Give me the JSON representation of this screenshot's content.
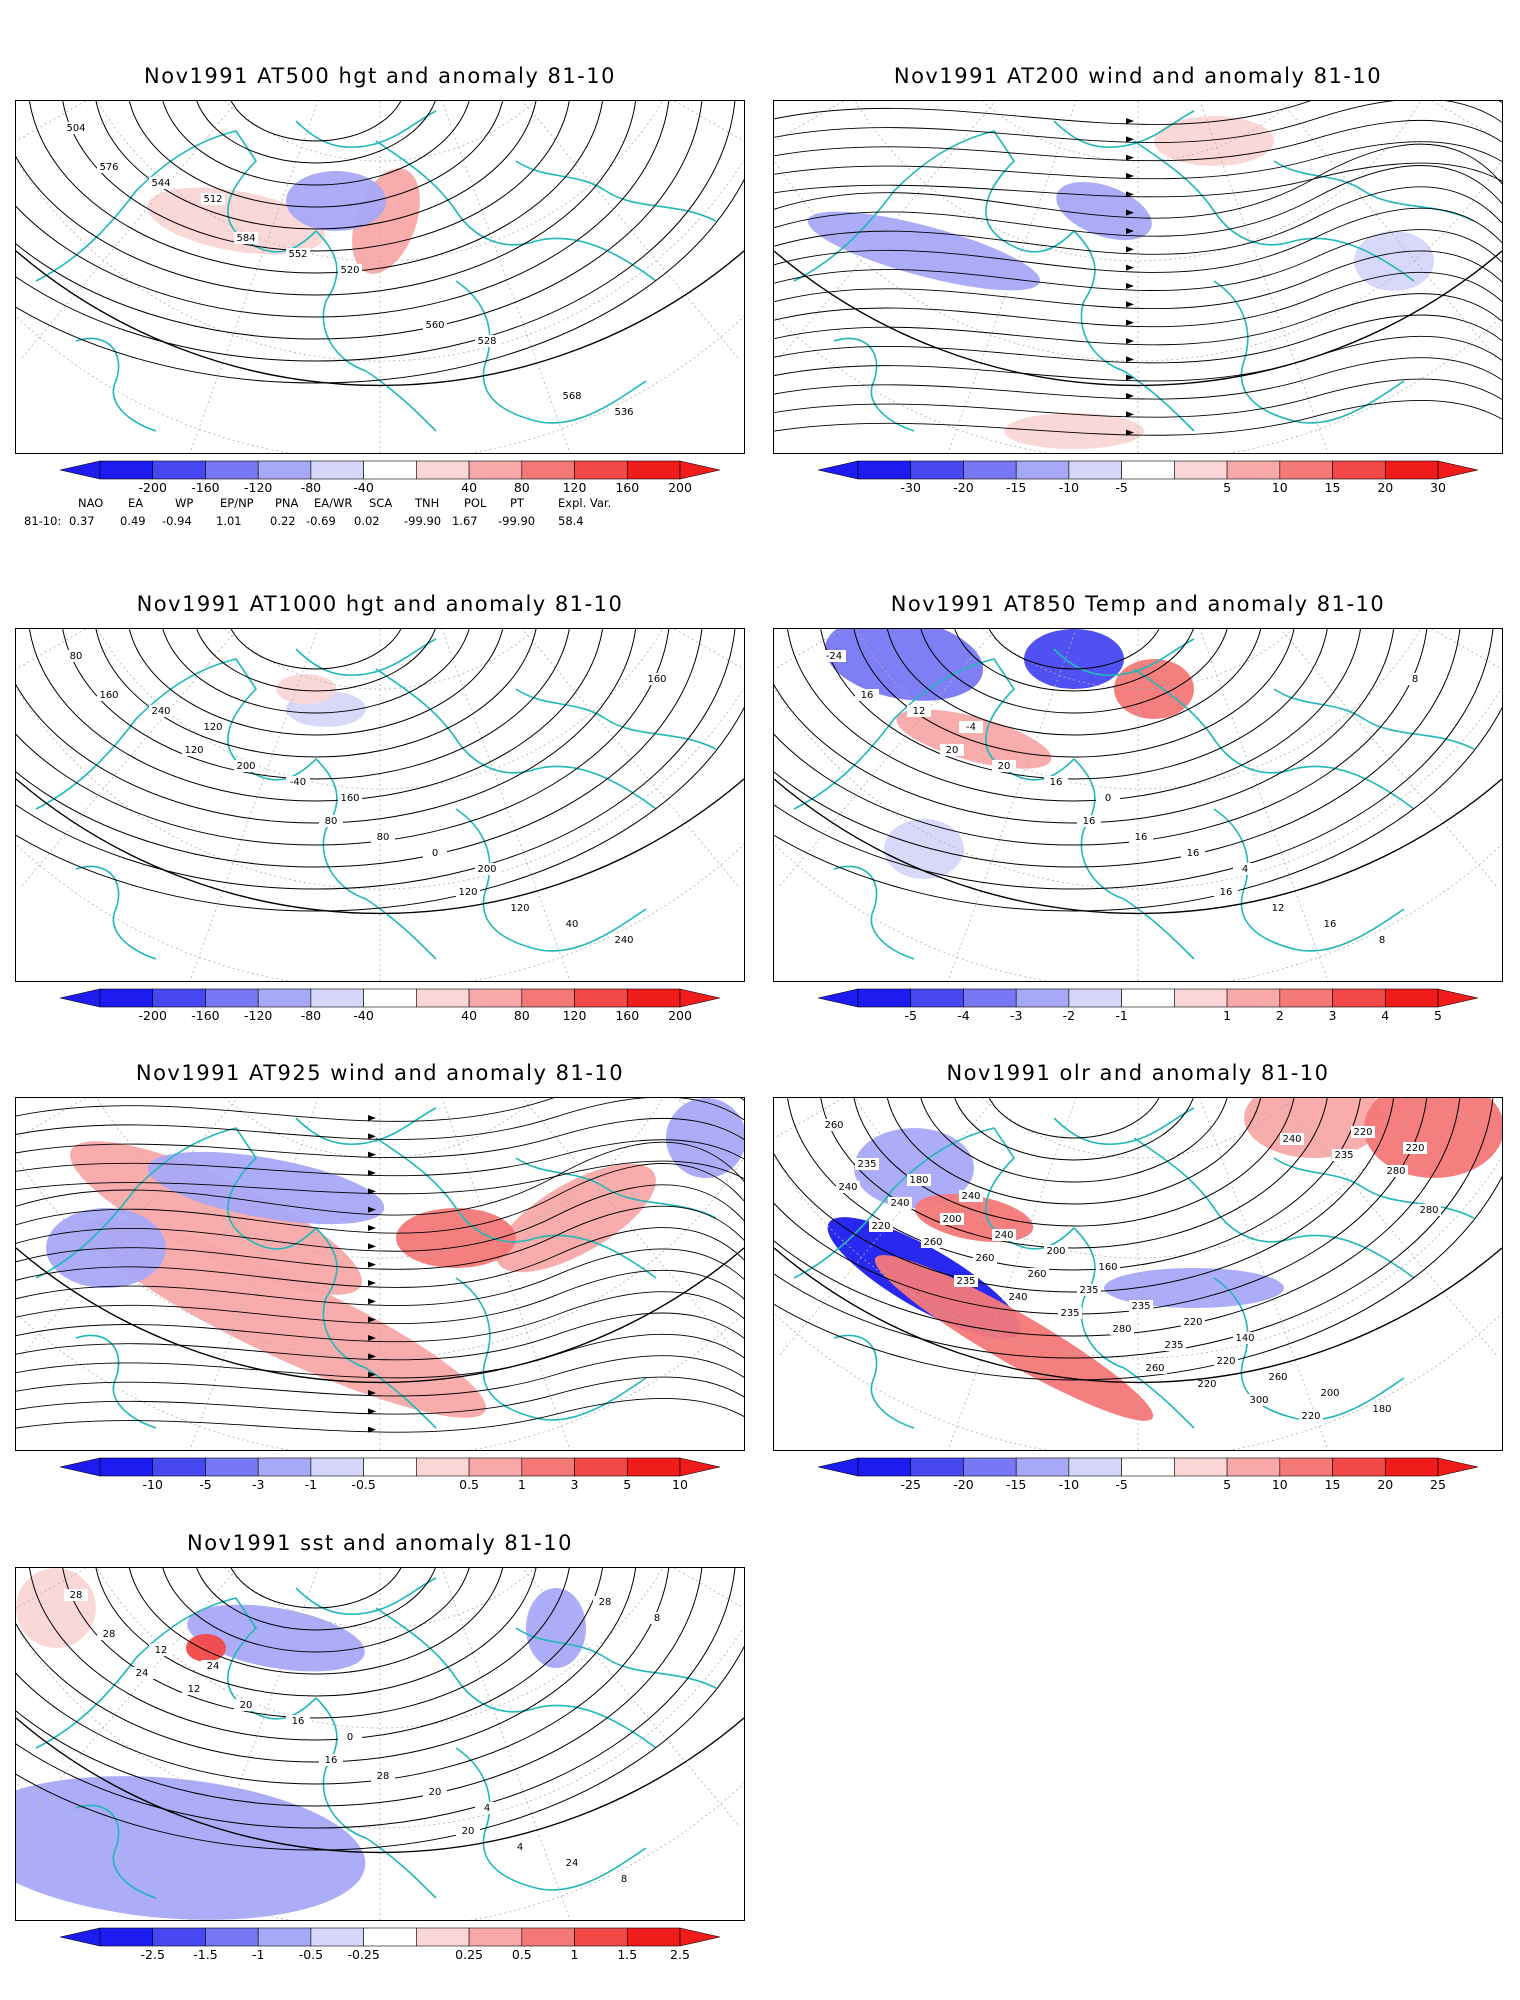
{
  "panels": [
    {
      "title": "Nov1991 AT500 hgt and anomaly 81-10",
      "contour_labels": [
        "504",
        "512",
        "520",
        "528",
        "536",
        "544",
        "552",
        "560",
        "568",
        "576",
        "584"
      ],
      "colorbar": {
        "ticks": [
          "-200",
          "-160",
          "-120",
          "-80",
          "-40",
          "40",
          "80",
          "120",
          "160",
          "200"
        ]
      }
    },
    {
      "title": "Nov1991 AT200 wind and anomaly 81-10",
      "contour_labels": [],
      "colorbar": {
        "ticks": [
          "-30",
          "-20",
          "-15",
          "-10",
          "-5",
          "5",
          "10",
          "15",
          "20",
          "30"
        ]
      }
    },
    {
      "title": "Nov1991 AT1000 hgt and anomaly 81-10",
      "contour_labels": [
        "80",
        "120",
        "160",
        "200",
        "240",
        "240",
        "-40",
        "0",
        "40",
        "160",
        "200",
        "80",
        "120",
        "160",
        "120",
        "80",
        "120"
      ],
      "colorbar": {
        "ticks": [
          "-200",
          "-160",
          "-120",
          "-80",
          "-40",
          "40",
          "80",
          "120",
          "160",
          "200"
        ]
      }
    },
    {
      "title": "Nov1991 AT850 Temp and anomaly 81-10",
      "contour_labels": [
        "-24",
        "-4",
        "0",
        "4",
        "8",
        "12",
        "16",
        "16",
        "16",
        "16",
        "20",
        "16",
        "12",
        "8",
        "20",
        "16",
        "16"
      ],
      "colorbar": {
        "ticks": [
          "-5",
          "-4",
          "-3",
          "-2",
          "-1",
          "1",
          "2",
          "3",
          "4",
          "5"
        ]
      }
    },
    {
      "title": "Nov1991 AT925 wind and anomaly 81-10",
      "contour_labels": [],
      "colorbar": {
        "ticks": [
          "-10",
          "-5",
          "-3",
          "-1",
          "-0.5",
          "0.5",
          "1",
          "3",
          "5",
          "10"
        ]
      }
    },
    {
      "title": "Nov1991 olr and anomaly 81-10",
      "contour_labels": [
        "260",
        "240",
        "160",
        "140",
        "180",
        "180",
        "200",
        "220",
        "200",
        "235",
        "240",
        "235",
        "260",
        "220",
        "200",
        "235",
        "220",
        "220",
        "240",
        "260",
        "235",
        "220",
        "240",
        "260",
        "280",
        "300",
        "280",
        "260",
        "235",
        "220",
        "235",
        "220",
        "240",
        "260",
        "240",
        "280",
        "235"
      ],
      "colorbar": {
        "ticks": [
          "-25",
          "-20",
          "-15",
          "-10",
          "-5",
          "5",
          "10",
          "15",
          "20",
          "25"
        ]
      }
    },
    {
      "title": "Nov1991 sst and anomaly 81-10",
      "contour_labels": [
        "28",
        "24",
        "0",
        "4",
        "8",
        "12",
        "16",
        "20",
        "24",
        "28",
        "20",
        "28",
        "4",
        "8",
        "12",
        "16",
        "20",
        "28",
        "24"
      ],
      "colorbar": {
        "ticks": [
          "-2.5",
          "-1.5",
          "-1",
          "-0.5",
          "-0.25",
          "0.25",
          "0.5",
          "1",
          "1.5",
          "2.5"
        ]
      }
    }
  ],
  "teleconnection": {
    "headers": [
      "NAO",
      "EA",
      "WP",
      "EP/NP",
      "PNA",
      "EA/WR",
      "SCA",
      "TNH",
      "POL",
      "PT",
      "Expl. Var."
    ],
    "row_label": "81-10:",
    "values": [
      "0.37",
      "0.49",
      "-0.94",
      "1.01",
      "0.22",
      "-0.69",
      "0.02",
      "-99.90",
      "1.67",
      "-99.90",
      "58.4"
    ]
  },
  "colors": {
    "coast": "#20b8b8",
    "blue_scale": [
      "#1c1cf0",
      "#4848f2",
      "#7878f4",
      "#a8a8f8",
      "#d6d6fb"
    ],
    "red_scale": [
      "#fbd6d6",
      "#f8a8a8",
      "#f47878",
      "#f24848",
      "#f01c1c"
    ],
    "contour": "#000000",
    "grid": "#b0b0b0"
  }
}
